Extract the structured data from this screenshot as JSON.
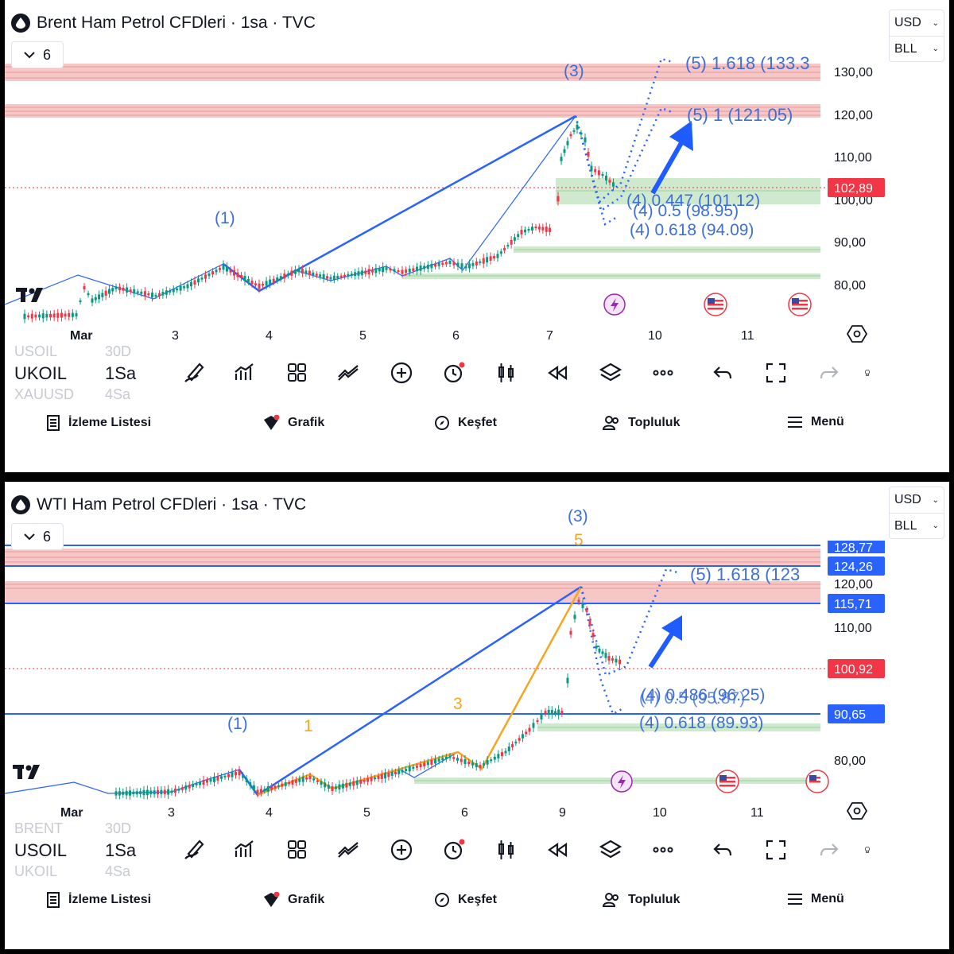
{
  "panels": [
    {
      "id": "brent",
      "title": "Brent Ham Petrol CFDleri · 1sa · TVC",
      "collapse_count": "6",
      "currency": "USD",
      "unit": "BLL",
      "price_ticks": [
        "130,00",
        "120,00",
        "110,00",
        "100,00",
        "90,00",
        "80,00"
      ],
      "current_price": "102,89",
      "date_ticks": [
        "Mar",
        "3",
        "4",
        "5",
        "6",
        "7",
        "10",
        "11"
      ],
      "labels": {
        "wave1": "(1)",
        "wave3": "(3)",
        "t5_1618": "(5) 1.618 (133.3",
        "t5_1": "(5) 1 (121.05)",
        "t4_0447": "(4) 0.447 (101.12)",
        "t4_05": "(4) 0.5 (98.95)",
        "t4_0618": "(4) 0.618 (94.09)"
      },
      "symbol": "UKOIL",
      "symbol_above": "USOIL",
      "symbol_below": "XAUUSD",
      "timeframe": "1Sa",
      "timeframe_above": "30D",
      "timeframe_below": "4Sa"
    },
    {
      "id": "wti",
      "title": "WTI Ham Petrol CFDleri · 1sa · TVC",
      "collapse_count": "6",
      "currency": "USD",
      "unit": "BLL",
      "price_ticks": [
        "120,00",
        "110,00",
        "80,00"
      ],
      "price_tags": [
        "128,77",
        "124,26",
        "115,71",
        "90,65"
      ],
      "current_price": "100,92",
      "date_ticks": [
        "Mar",
        "3",
        "4",
        "5",
        "6",
        "9",
        "10",
        "11"
      ],
      "labels": {
        "wave1": "(1)",
        "wave3": "(3)",
        "sub1": "1",
        "sub3": "3",
        "sub5": "5",
        "t5_1618": "(5) 1.618 (123",
        "t4_0486": "(4) 0.486 (96.25)",
        "t4_05": "(4) 0.5 (95.87)",
        "t4_0618": "(4) 0.618 (89.93)"
      },
      "symbol": "USOIL",
      "symbol_above": "BRENT",
      "symbol_below": "UKOIL",
      "timeframe": "1Sa",
      "timeframe_above": "30D",
      "timeframe_below": "4Sa"
    }
  ],
  "nav": {
    "watchlist": "İzleme Listesi",
    "chart": "Grafik",
    "explore": "Keşfet",
    "community": "Topluluk",
    "menu": "Menü"
  },
  "colors": {
    "wave_blue": "#2962ff",
    "label_blue": "#3d6fd8",
    "orange": "#f5a623",
    "bull": "#089981",
    "bear": "#f23645",
    "resistance_fill": "#f7c6c6",
    "support_fill": "#cfe9cf"
  },
  "icons": [
    "drop-icon",
    "chevron-down-icon",
    "tradingview-logo",
    "settings-hex-icon",
    "pen-icon",
    "indicators-icon",
    "templates-icon",
    "drawings-icon",
    "plus-circle-icon",
    "alert-icon",
    "candles-icon",
    "replay-icon",
    "layers-icon",
    "more-icon",
    "undo-icon",
    "fullscreen-icon",
    "redo-icon",
    "lightbulb-icon",
    "watchlist-icon",
    "chart-icon",
    "explore-icon",
    "community-icon",
    "menu-icon",
    "flash-icon",
    "us-flag-icon"
  ]
}
